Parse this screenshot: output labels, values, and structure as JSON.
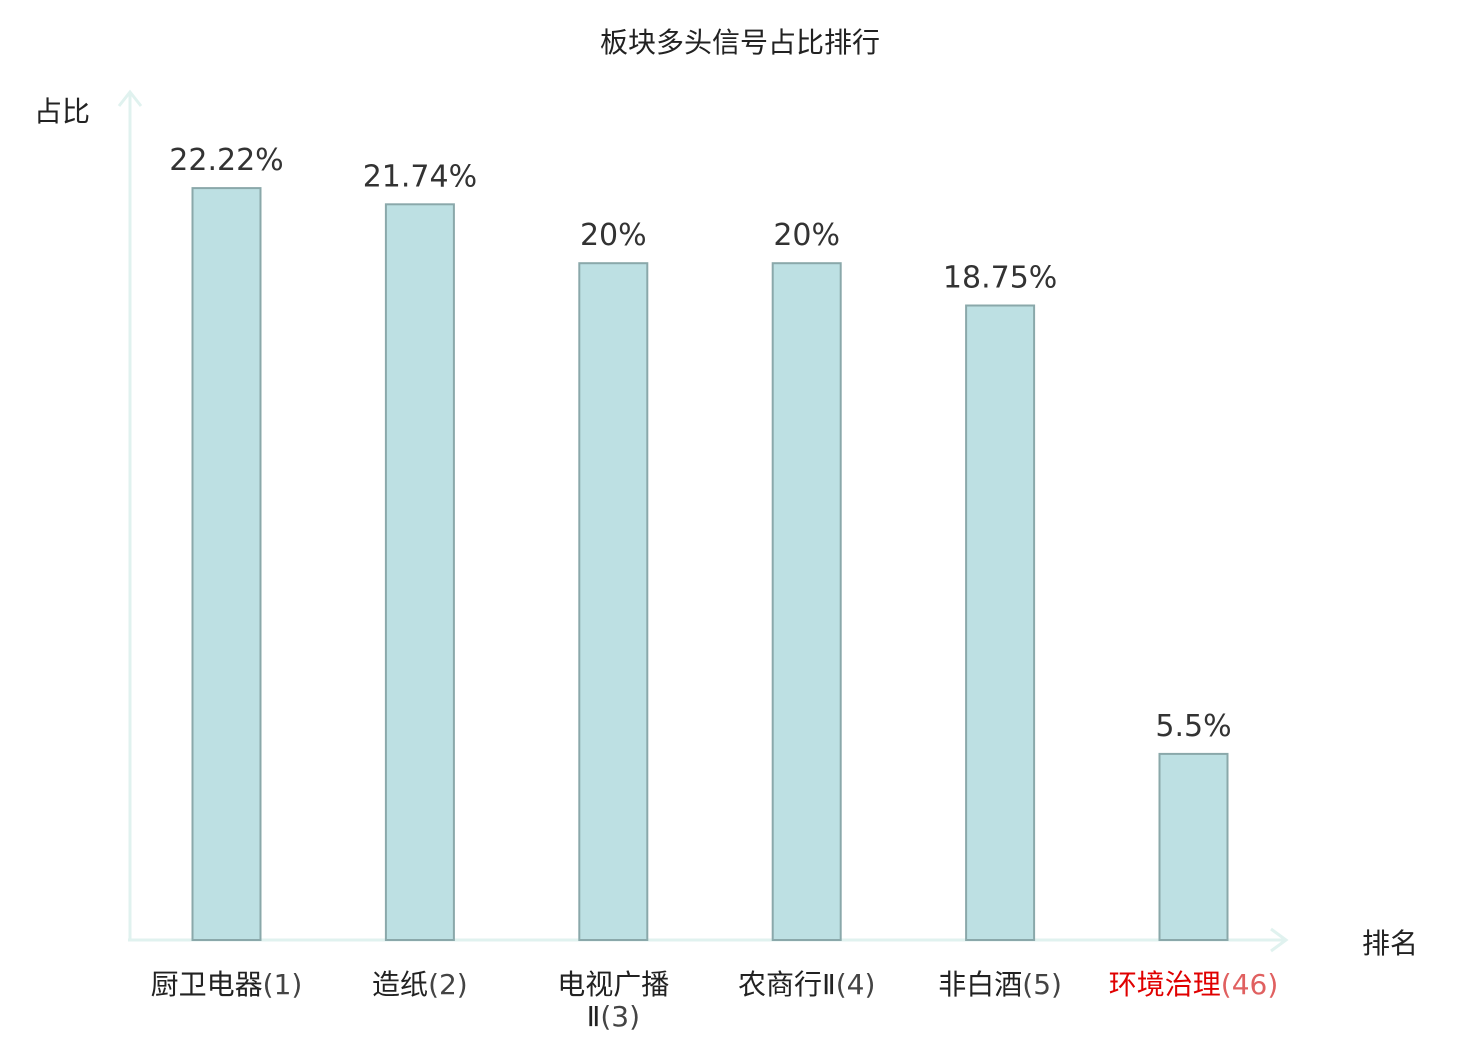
{
  "chart_data": {
    "type": "bar",
    "title": "板块多头信号占比排行",
    "xlabel": "排名",
    "ylabel": "占比",
    "categories": [
      "厨卫电器(1)",
      "造纸(2)",
      "电视广播Ⅱ(3)",
      "农商行Ⅱ(4)",
      "非白酒(5)",
      "环境治理(46)"
    ],
    "category_lines": [
      [
        "厨卫电器(1)"
      ],
      [
        "造纸(2)"
      ],
      [
        "电视广播",
        "Ⅱ(3)"
      ],
      [
        "农商行Ⅱ(4)"
      ],
      [
        "非白酒(5)"
      ],
      [
        "环境治理(46)"
      ]
    ],
    "values": [
      22.22,
      21.74,
      20,
      20,
      18.75,
      5.5
    ],
    "value_labels": [
      "22.22%",
      "21.74%",
      "20%",
      "20%",
      "18.75%",
      "5.5%"
    ],
    "highlight_index": 5,
    "ylim": [
      0,
      25
    ],
    "grid": false,
    "legend": "none",
    "colors": {
      "bar_fill": "#bde0e3",
      "bar_stroke": "#8aa8aa",
      "axis": "#e0f2ef",
      "text": "#222222",
      "value_text": "#333333",
      "highlight": "#e00000",
      "highlight_paren": "#e06060"
    }
  }
}
